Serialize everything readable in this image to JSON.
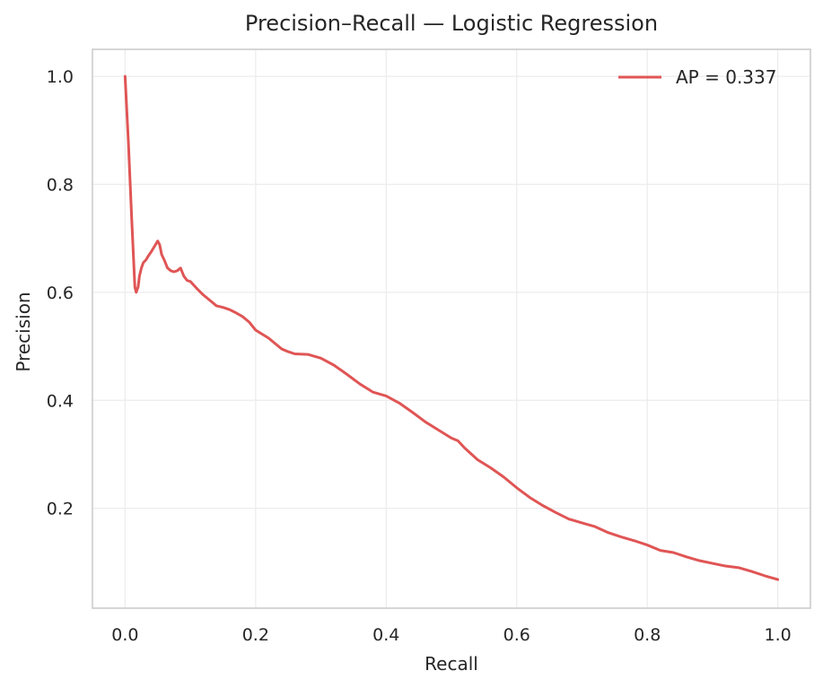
{
  "chart_data": {
    "type": "line",
    "title": "Precision–Recall — Logistic Regression",
    "xlabel": "Recall",
    "ylabel": "Precision",
    "xlim": [
      -0.05,
      1.05
    ],
    "ylim": [
      0.015,
      1.05
    ],
    "xticks": [
      0.0,
      0.2,
      0.4,
      0.6,
      0.8,
      1.0
    ],
    "xtick_labels": [
      "0.0",
      "0.2",
      "0.4",
      "0.6",
      "0.8",
      "1.0"
    ],
    "yticks": [
      0.2,
      0.4,
      0.6,
      0.8,
      1.0
    ],
    "ytick_labels": [
      "0.2",
      "0.4",
      "0.6",
      "0.8",
      "1.0"
    ],
    "grid": true,
    "legend_position": "top-right",
    "series": [
      {
        "name": "AP = 0.337",
        "color": "#e05555",
        "x": [
          0.0,
          0.005,
          0.01,
          0.015,
          0.017,
          0.02,
          0.022,
          0.025,
          0.028,
          0.032,
          0.036,
          0.04,
          0.045,
          0.05,
          0.053,
          0.056,
          0.06,
          0.065,
          0.07,
          0.075,
          0.08,
          0.085,
          0.09,
          0.095,
          0.1,
          0.11,
          0.12,
          0.13,
          0.14,
          0.15,
          0.16,
          0.17,
          0.18,
          0.19,
          0.2,
          0.22,
          0.24,
          0.25,
          0.26,
          0.28,
          0.3,
          0.32,
          0.34,
          0.36,
          0.38,
          0.4,
          0.42,
          0.44,
          0.46,
          0.48,
          0.5,
          0.51,
          0.52,
          0.54,
          0.56,
          0.58,
          0.6,
          0.62,
          0.64,
          0.66,
          0.68,
          0.7,
          0.72,
          0.74,
          0.76,
          0.78,
          0.8,
          0.82,
          0.84,
          0.86,
          0.88,
          0.9,
          0.92,
          0.94,
          0.96,
          0.98,
          1.0
        ],
        "y": [
          1.0,
          0.88,
          0.74,
          0.61,
          0.6,
          0.61,
          0.63,
          0.645,
          0.655,
          0.66,
          0.668,
          0.675,
          0.685,
          0.695,
          0.688,
          0.67,
          0.66,
          0.645,
          0.64,
          0.638,
          0.64,
          0.645,
          0.63,
          0.622,
          0.62,
          0.607,
          0.595,
          0.585,
          0.575,
          0.572,
          0.568,
          0.562,
          0.555,
          0.545,
          0.53,
          0.515,
          0.495,
          0.49,
          0.486,
          0.485,
          0.478,
          0.465,
          0.448,
          0.43,
          0.415,
          0.408,
          0.395,
          0.378,
          0.36,
          0.345,
          0.33,
          0.325,
          0.312,
          0.29,
          0.275,
          0.258,
          0.238,
          0.22,
          0.205,
          0.192,
          0.18,
          0.173,
          0.166,
          0.155,
          0.147,
          0.14,
          0.132,
          0.122,
          0.118,
          0.11,
          0.103,
          0.098,
          0.093,
          0.09,
          0.083,
          0.075,
          0.068
        ]
      }
    ]
  }
}
